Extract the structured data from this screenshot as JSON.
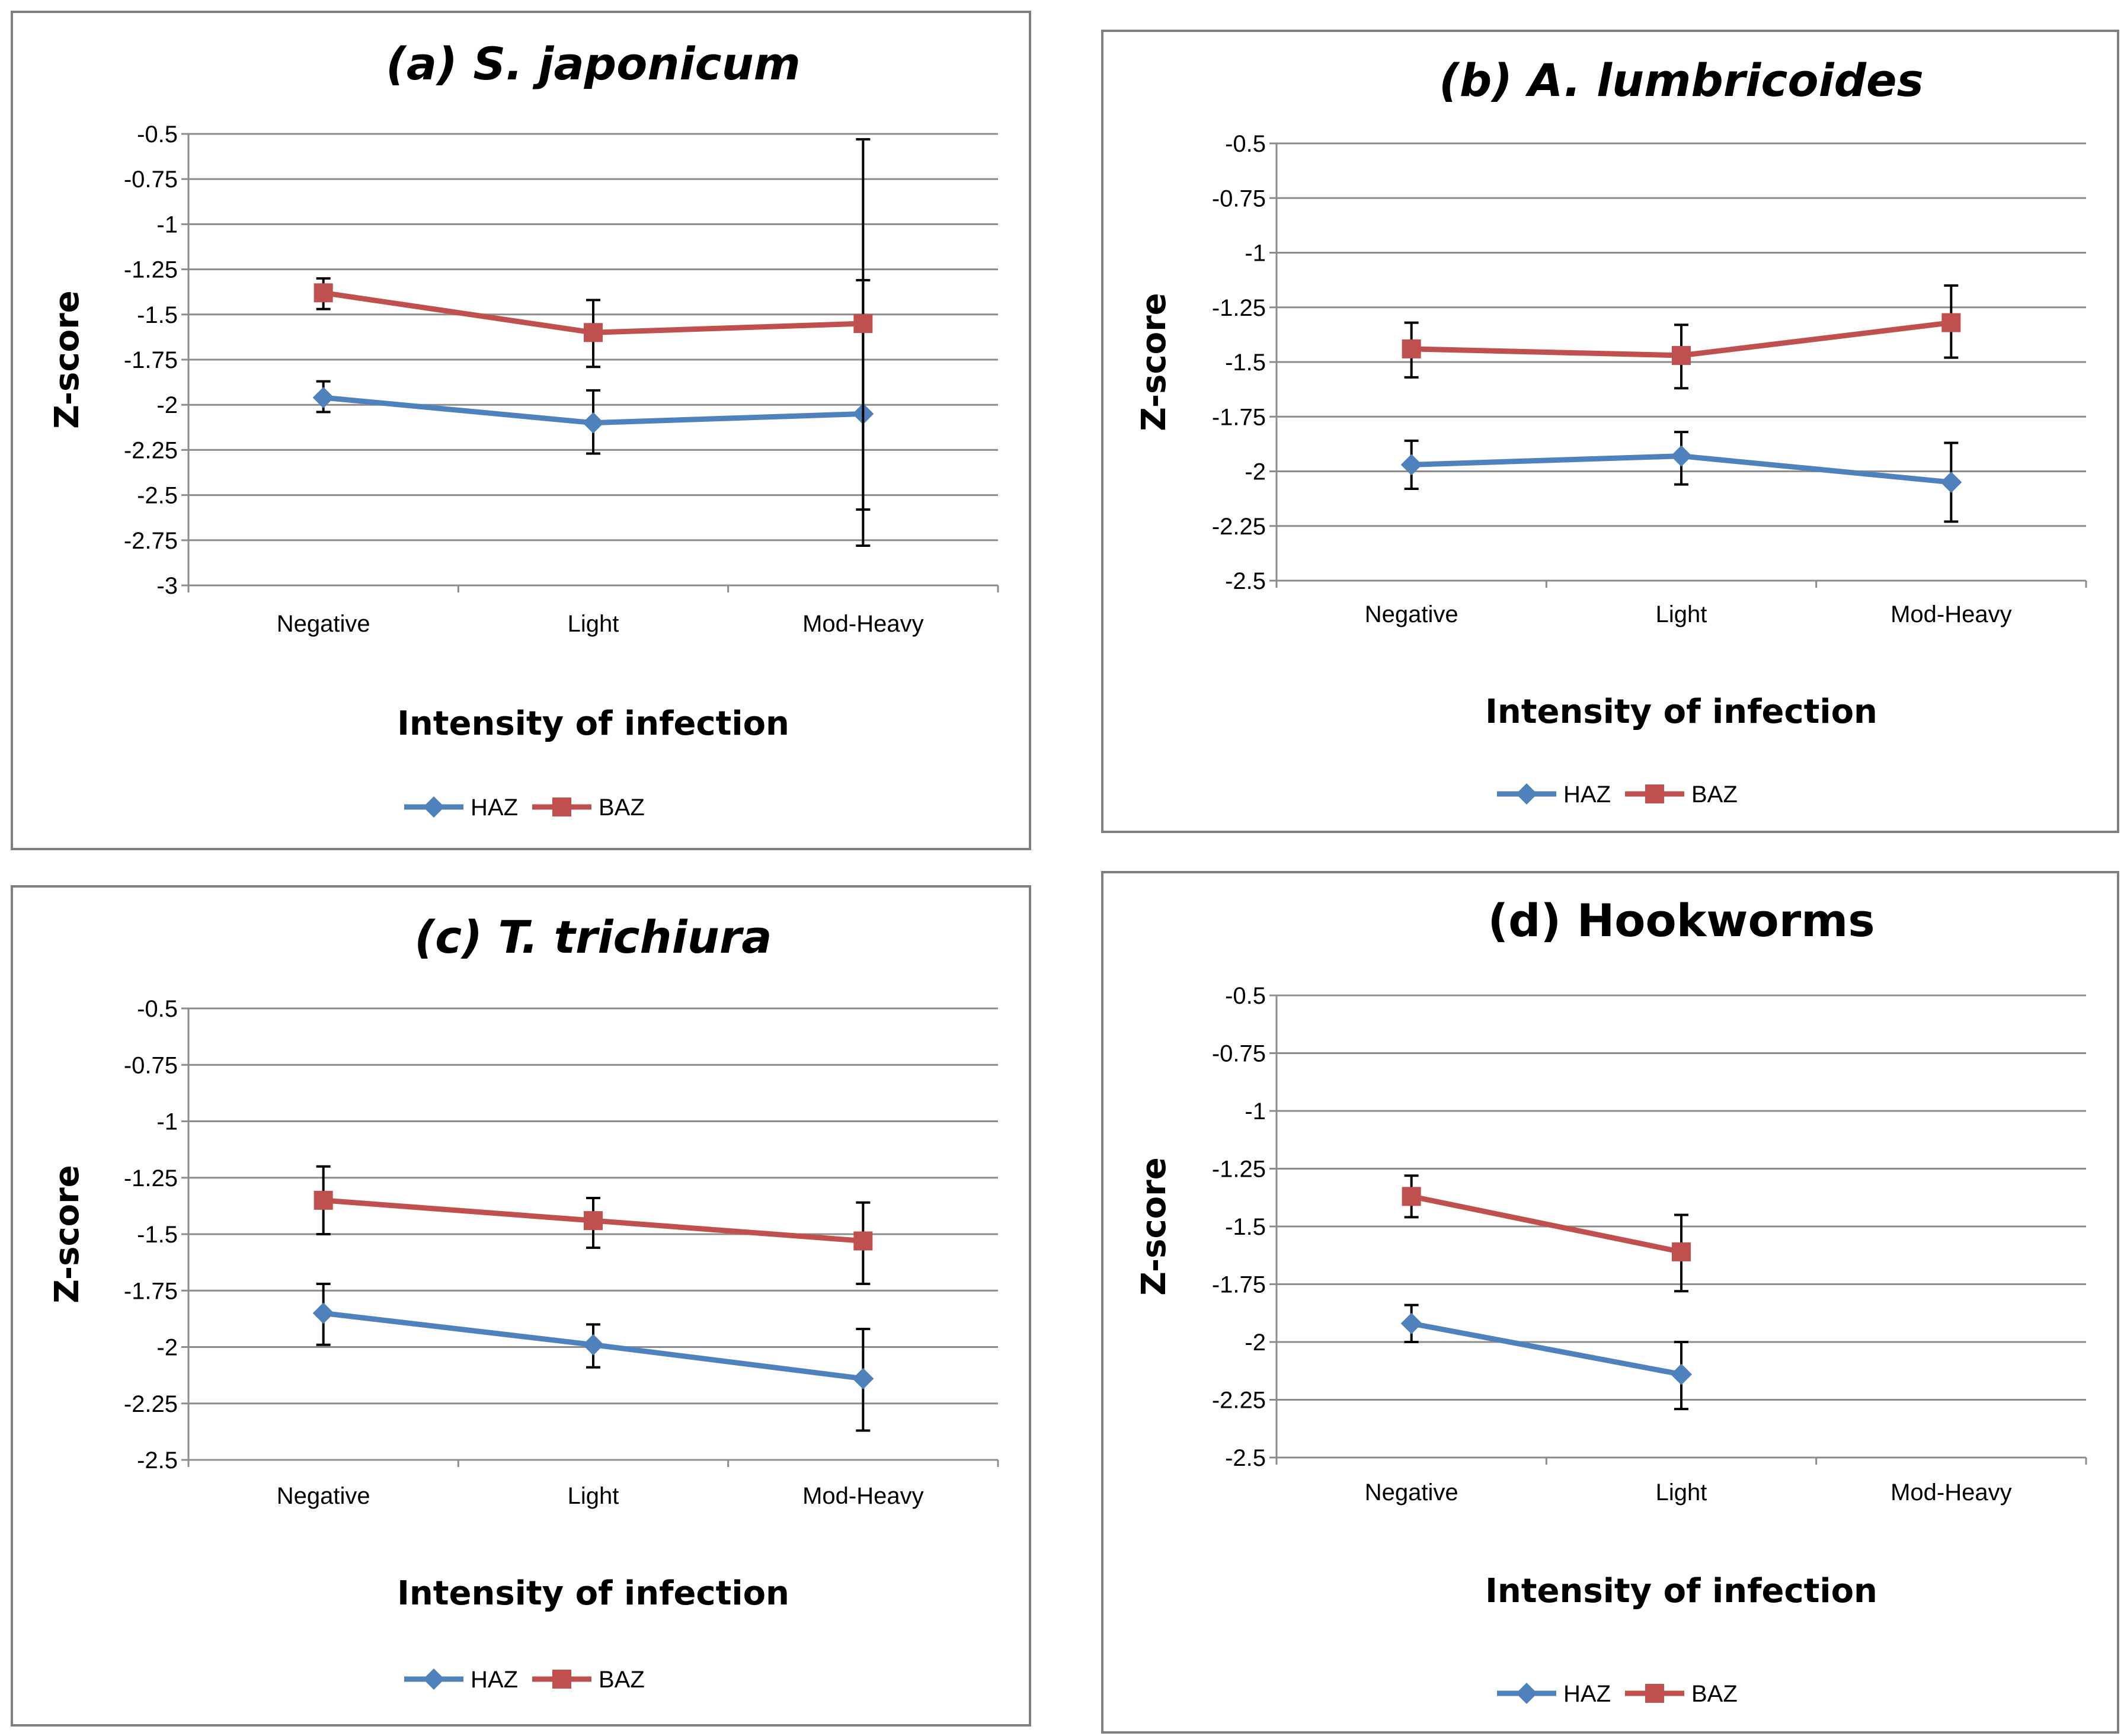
{
  "chart_data": [
    {
      "type": "line",
      "title": "(a) S. japonicum",
      "italic_title": true,
      "categories": [
        "Negative",
        "Light",
        "Mod-Heavy"
      ],
      "xlabel": "Intensity of infection",
      "ylabel": "Z-score",
      "ylim": [
        -3,
        -0.5
      ],
      "yticks": [
        -0.5,
        -0.75,
        -1,
        -1.25,
        -1.5,
        -1.75,
        -2,
        -2.25,
        -2.5,
        -2.75,
        -3
      ],
      "ytick_labels": [
        "-0.5",
        "-0.75",
        "-1",
        "-1.25",
        "-1.5",
        "-1.75",
        "-2",
        "-2.25",
        "-2.5",
        "-2.75",
        "-3"
      ],
      "grid": true,
      "legend": "bottom",
      "series": [
        {
          "name": "HAZ",
          "color": "#4f81bd",
          "marker": "diamond",
          "values": [
            -1.96,
            -2.1,
            -2.05
          ],
          "err_low": [
            -2.04,
            -2.27,
            -2.78
          ],
          "err_high": [
            -1.87,
            -1.92,
            -1.31
          ]
        },
        {
          "name": "BAZ",
          "color": "#c0504d",
          "marker": "square",
          "values": [
            -1.38,
            -1.6,
            -1.55
          ],
          "err_low": [
            -1.47,
            -1.79,
            -2.58
          ],
          "err_high": [
            -1.3,
            -1.42,
            -0.53
          ]
        }
      ]
    },
    {
      "type": "line",
      "title": "(b) A. lumbricoides",
      "italic_title": true,
      "categories": [
        "Negative",
        "Light",
        "Mod-Heavy"
      ],
      "xlabel": "Intensity of infection",
      "ylabel": "Z-score",
      "ylim": [
        -2.5,
        -0.5
      ],
      "yticks": [
        -0.5,
        -0.75,
        -1,
        -1.25,
        -1.5,
        -1.75,
        -2,
        -2.25,
        -2.5
      ],
      "ytick_labels": [
        "-0.5",
        "-0.75",
        "-1",
        "-1.25",
        "-1.5",
        "-1.75",
        "-2",
        "-2.25",
        "-2.5"
      ],
      "grid": true,
      "legend": "bottom",
      "series": [
        {
          "name": "HAZ",
          "color": "#4f81bd",
          "marker": "diamond",
          "values": [
            -1.97,
            -1.93,
            -2.05
          ],
          "err_low": [
            -2.08,
            -2.06,
            -2.23
          ],
          "err_high": [
            -1.86,
            -1.82,
            -1.87
          ]
        },
        {
          "name": "BAZ",
          "color": "#c0504d",
          "marker": "square",
          "values": [
            -1.44,
            -1.47,
            -1.32
          ],
          "err_low": [
            -1.57,
            -1.62,
            -1.48
          ],
          "err_high": [
            -1.32,
            -1.33,
            -1.15
          ]
        }
      ]
    },
    {
      "type": "line",
      "title": "(c) T. trichiura",
      "italic_title": true,
      "categories": [
        "Negative",
        "Light",
        "Mod-Heavy"
      ],
      "xlabel": "Intensity of infection",
      "ylabel": "Z-score",
      "ylim": [
        -2.5,
        -0.5
      ],
      "yticks": [
        -0.5,
        -0.75,
        -1,
        -1.25,
        -1.5,
        -1.75,
        -2,
        -2.25,
        -2.5
      ],
      "ytick_labels": [
        "-0.5",
        "-0.75",
        "-1",
        "-1.25",
        "-1.5",
        "-1.75",
        "-2",
        "-2.25",
        "-2.5"
      ],
      "grid": true,
      "legend": "bottom",
      "series": [
        {
          "name": "HAZ",
          "color": "#4f81bd",
          "marker": "diamond",
          "values": [
            -1.85,
            -1.99,
            -2.14
          ],
          "err_low": [
            -1.99,
            -2.09,
            -2.37
          ],
          "err_high": [
            -1.72,
            -1.9,
            -1.92
          ]
        },
        {
          "name": "BAZ",
          "color": "#c0504d",
          "marker": "square",
          "values": [
            -1.35,
            -1.44,
            -1.53
          ],
          "err_low": [
            -1.5,
            -1.56,
            -1.72
          ],
          "err_high": [
            -1.2,
            -1.34,
            -1.36
          ]
        }
      ]
    },
    {
      "type": "line",
      "title": "(d) Hookworms",
      "italic_title": false,
      "categories": [
        "Negative",
        "Light",
        "Mod-Heavy"
      ],
      "xlabel": "Intensity of infection",
      "ylabel": "Z-score",
      "ylim": [
        -2.5,
        -0.5
      ],
      "yticks": [
        -0.5,
        -0.75,
        -1,
        -1.25,
        -1.5,
        -1.75,
        -2,
        -2.25,
        -2.5
      ],
      "ytick_labels": [
        "-0.5",
        "-0.75",
        "-1",
        "-1.25",
        "-1.5",
        "-1.75",
        "-2",
        "-2.25",
        "-2.5"
      ],
      "grid": true,
      "legend": "bottom",
      "series": [
        {
          "name": "HAZ",
          "color": "#4f81bd",
          "marker": "diamond",
          "values": [
            -1.92,
            -2.14,
            null
          ],
          "err_low": [
            -2.0,
            -2.29,
            null
          ],
          "err_high": [
            -1.84,
            -2.0,
            null
          ]
        },
        {
          "name": "BAZ",
          "color": "#c0504d",
          "marker": "square",
          "values": [
            -1.37,
            -1.61,
            null
          ],
          "err_low": [
            -1.46,
            -1.78,
            null
          ],
          "err_high": [
            -1.28,
            -1.45,
            null
          ]
        }
      ]
    }
  ]
}
